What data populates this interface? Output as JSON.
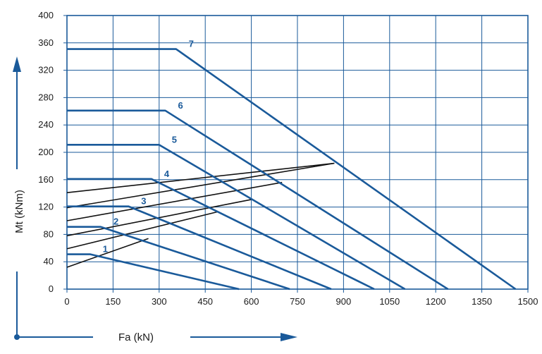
{
  "chart_data": {
    "type": "line",
    "xlabel": "Fa (kN)",
    "ylabel": "Mt (kNm)",
    "xlim": [
      0,
      1500
    ],
    "ylim": [
      0,
      400
    ],
    "x_ticks": [
      0,
      150,
      300,
      450,
      600,
      750,
      900,
      1050,
      1200,
      1350,
      1500
    ],
    "y_ticks": [
      0,
      40,
      80,
      120,
      160,
      200,
      240,
      280,
      320,
      360,
      400
    ],
    "grid": true,
    "colors": {
      "curve": "#1a5a9a",
      "grid": "#1a5a9a",
      "load_line": "#111111",
      "axis_arrow": "#1a5a9a"
    },
    "series": [
      {
        "name": "1",
        "points": [
          [
            0,
            51
          ],
          [
            75,
            51
          ],
          [
            560,
            0
          ]
        ]
      },
      {
        "name": "2",
        "points": [
          [
            0,
            91
          ],
          [
            110,
            91
          ],
          [
            725,
            0
          ]
        ]
      },
      {
        "name": "3",
        "points": [
          [
            0,
            121
          ],
          [
            200,
            121
          ],
          [
            860,
            0
          ]
        ]
      },
      {
        "name": "4",
        "points": [
          [
            0,
            161
          ],
          [
            275,
            161
          ],
          [
            1000,
            0
          ]
        ]
      },
      {
        "name": "5",
        "points": [
          [
            0,
            211
          ],
          [
            300,
            211
          ],
          [
            1100,
            0
          ]
        ]
      },
      {
        "name": "6",
        "points": [
          [
            0,
            261
          ],
          [
            320,
            261
          ],
          [
            1240,
            0
          ]
        ]
      },
      {
        "name": "7",
        "points": [
          [
            0,
            351
          ],
          [
            355,
            351
          ],
          [
            1460,
            0
          ]
        ]
      }
    ],
    "load_lines": [
      {
        "points": [
          [
            0,
            32
          ],
          [
            265,
            74
          ]
        ]
      },
      {
        "points": [
          [
            0,
            59
          ],
          [
            490,
            113
          ]
        ]
      },
      {
        "points": [
          [
            0,
            78
          ],
          [
            600,
            131
          ]
        ]
      },
      {
        "points": [
          [
            0,
            100
          ],
          [
            700,
            156
          ]
        ]
      },
      {
        "points": [
          [
            0,
            119
          ],
          [
            870,
            184
          ]
        ]
      },
      {
        "points": [
          [
            0,
            141
          ],
          [
            870,
            184
          ]
        ]
      }
    ]
  }
}
